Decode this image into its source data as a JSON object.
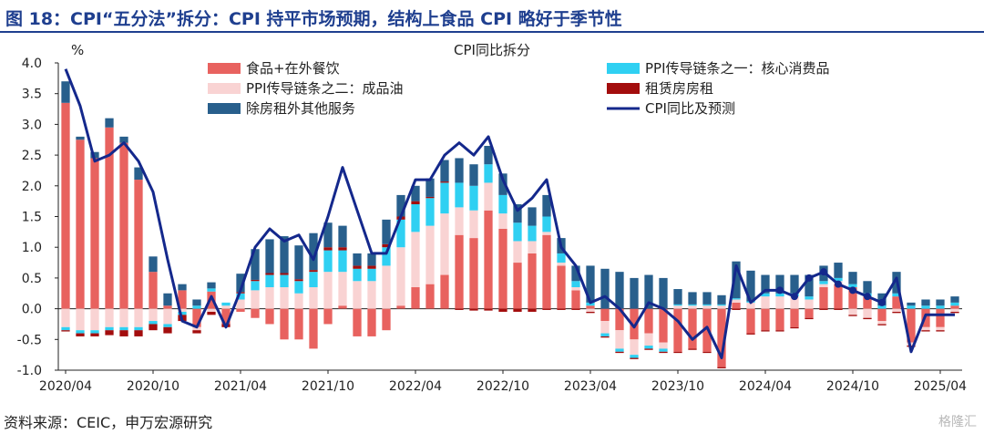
{
  "header": {
    "title": "图 18：CPI“五分法”拆分：CPI 持平市场预期，结构上食品 CPI 略好于季节性"
  },
  "footer": {
    "source": "资料来源：CEIC，申万宏源研究",
    "watermark": "格隆汇"
  },
  "colors": {
    "food": "#e8625f",
    "core_goods": "#2fd0f2",
    "oil_goods": "#f9d3d3",
    "rent": "#a30d0d",
    "other_services": "#285f8c",
    "cpi_line": "#14288c",
    "axis": "#222222"
  },
  "chart_data": {
    "type": "bar",
    "title": "CPI同比拆分",
    "ylabel": "%",
    "xlabel": "",
    "ylim": [
      -1.0,
      4.0
    ],
    "yticks": [
      "4.0",
      "3.5",
      "3.0",
      "2.5",
      "2.0",
      "1.5",
      "1.0",
      "0.5",
      "0.0",
      "-0.5",
      "-1.0"
    ],
    "x_tick_labels": [
      "2020/04",
      "2020/10",
      "2021/04",
      "2021/10",
      "2022/04",
      "2022/10",
      "2023/04",
      "2023/10",
      "2024/04",
      "2024/10",
      "2025/04"
    ],
    "legend_placement": "top",
    "grid": false,
    "categories": [
      "2020/04",
      "2020/05",
      "2020/06",
      "2020/07",
      "2020/08",
      "2020/09",
      "2020/10",
      "2020/11",
      "2020/12",
      "2021/01",
      "2021/02",
      "2021/03",
      "2021/04",
      "2021/05",
      "2021/06",
      "2021/07",
      "2021/08",
      "2021/09",
      "2021/10",
      "2021/11",
      "2021/12",
      "2022/01",
      "2022/02",
      "2022/03",
      "2022/04",
      "2022/05",
      "2022/06",
      "2022/07",
      "2022/08",
      "2022/09",
      "2022/10",
      "2022/11",
      "2022/12",
      "2023/01",
      "2023/02",
      "2023/03",
      "2023/04",
      "2023/05",
      "2023/06",
      "2023/07",
      "2023/08",
      "2023/09",
      "2023/10",
      "2023/11",
      "2023/12",
      "2024/01",
      "2024/02",
      "2024/03",
      "2024/04",
      "2024/05",
      "2024/06",
      "2024/07",
      "2024/08",
      "2024/09",
      "2024/10",
      "2024/11",
      "2024/12",
      "2025/01",
      "2025/02",
      "2025/03",
      "2025/04",
      "2025/05"
    ],
    "series": [
      {
        "name": "食品+在外餐饮",
        "key": "food",
        "values": [
          3.35,
          2.75,
          2.45,
          2.95,
          2.7,
          2.1,
          0.6,
          0.05,
          0.3,
          -0.3,
          0.28,
          -0.25,
          -0.05,
          -0.15,
          -0.25,
          -0.5,
          -0.5,
          -0.65,
          -0.25,
          0.05,
          -0.45,
          -0.45,
          -0.35,
          0.05,
          0.35,
          0.4,
          0.55,
          1.2,
          1.15,
          1.6,
          1.3,
          0.75,
          0.9,
          1.2,
          0.7,
          0.3,
          0.05,
          -0.2,
          -0.35,
          -0.5,
          -0.4,
          -0.55,
          -0.7,
          -0.65,
          -0.7,
          -0.95,
          0.1,
          -0.4,
          -0.35,
          -0.35,
          -0.3,
          -0.15,
          0.35,
          0.4,
          0.35,
          0.2,
          -0.2,
          0.2,
          -0.55,
          -0.3,
          -0.3,
          0.05
        ]
      },
      {
        "name": "PPI传导链条之二：成品油",
        "key": "oil_goods",
        "values": [
          -0.3,
          -0.35,
          -0.35,
          -0.3,
          -0.3,
          -0.3,
          -0.2,
          -0.25,
          -0.05,
          -0.05,
          -0.05,
          0.05,
          0.15,
          0.3,
          0.35,
          0.35,
          0.25,
          0.35,
          0.6,
          0.55,
          0.45,
          0.45,
          0.7,
          0.95,
          0.9,
          0.95,
          1.0,
          0.45,
          0.45,
          0.45,
          0.25,
          0.35,
          0.2,
          0.05,
          0.05,
          0.05,
          -0.05,
          -0.2,
          -0.3,
          -0.25,
          -0.2,
          -0.1,
          0.05,
          0.05,
          0.05,
          0.05,
          0.05,
          0.1,
          0.2,
          0.2,
          0.2,
          0.15,
          0.05,
          0.05,
          -0.1,
          -0.15,
          -0.05,
          -0.05,
          -0.05,
          -0.05,
          -0.05,
          -0.05
        ]
      },
      {
        "name": "PPI传导链条之一：核心消费品",
        "key": "core_goods",
        "values": [
          -0.05,
          -0.05,
          -0.05,
          -0.05,
          -0.05,
          -0.05,
          -0.05,
          -0.05,
          -0.05,
          0.05,
          0.05,
          0.05,
          0.1,
          0.15,
          0.2,
          0.2,
          0.2,
          0.25,
          0.35,
          0.35,
          0.2,
          0.2,
          0.3,
          0.45,
          0.45,
          0.45,
          0.5,
          0.4,
          0.4,
          0.3,
          0.3,
          0.3,
          0.25,
          0.25,
          0.15,
          0.1,
          0.05,
          -0.05,
          -0.05,
          -0.05,
          -0.05,
          -0.05,
          0.02,
          0.02,
          0.02,
          0.02,
          0.02,
          0.02,
          0.05,
          0.05,
          0.05,
          0.05,
          0.05,
          0.05,
          0.05,
          0.05,
          0.05,
          0.05,
          0.05,
          0.05,
          0.05,
          0.05
        ]
      },
      {
        "name": "租赁房房租",
        "key": "rent",
        "values": [
          -0.02,
          -0.05,
          -0.05,
          -0.08,
          -0.1,
          -0.1,
          -0.1,
          -0.1,
          -0.1,
          -0.05,
          -0.05,
          -0.05,
          0.02,
          0.02,
          0.03,
          0.03,
          0.03,
          0.03,
          0.05,
          0.05,
          0.05,
          0.05,
          0.05,
          0.05,
          0.05,
          0.02,
          0.02,
          -0.02,
          -0.03,
          -0.03,
          -0.05,
          -0.05,
          -0.05,
          -0.02,
          -0.02,
          -0.02,
          -0.02,
          -0.02,
          -0.02,
          -0.02,
          -0.02,
          -0.02,
          -0.02,
          -0.02,
          -0.02,
          -0.02,
          -0.02,
          -0.02,
          -0.02,
          -0.02,
          -0.02,
          -0.02,
          -0.02,
          -0.02,
          -0.02,
          -0.02,
          -0.02,
          -0.02,
          -0.02,
          -0.02,
          -0.02,
          -0.02
        ]
      },
      {
        "name": "除房租外其他服务",
        "key": "other_services",
        "values": [
          0.35,
          0.05,
          0.1,
          0.15,
          0.1,
          0.2,
          0.25,
          0.2,
          0.1,
          0.1,
          0.1,
          0.0,
          0.3,
          0.5,
          0.55,
          0.6,
          0.55,
          0.6,
          0.4,
          0.35,
          0.2,
          0.2,
          0.4,
          0.35,
          0.25,
          0.3,
          0.35,
          0.4,
          0.35,
          0.3,
          0.35,
          0.3,
          0.3,
          0.35,
          0.25,
          0.25,
          0.6,
          0.65,
          0.6,
          0.5,
          0.55,
          0.5,
          0.25,
          0.2,
          0.2,
          0.15,
          0.6,
          0.5,
          0.3,
          0.3,
          0.3,
          0.35,
          0.25,
          0.25,
          0.2,
          0.2,
          0.2,
          0.35,
          0.05,
          0.1,
          0.1,
          0.1
        ]
      },
      {
        "name": "CPI同比及预测",
        "key": "cpi",
        "type": "line",
        "values": [
          3.9,
          3.3,
          2.4,
          2.5,
          2.7,
          2.4,
          1.9,
          0.8,
          -0.2,
          -0.3,
          0.2,
          -0.3,
          0.3,
          1.0,
          1.3,
          1.1,
          1.2,
          0.8,
          1.5,
          2.3,
          1.6,
          0.9,
          0.9,
          1.5,
          2.1,
          2.1,
          2.5,
          2.7,
          2.5,
          2.8,
          2.1,
          1.6,
          1.8,
          2.1,
          1.0,
          0.7,
          0.1,
          0.2,
          0.0,
          -0.3,
          0.1,
          0.0,
          -0.2,
          -0.5,
          -0.3,
          -0.8,
          0.7,
          0.1,
          0.3,
          0.3,
          0.2,
          0.5,
          0.6,
          0.4,
          0.3,
          0.2,
          0.1,
          0.5,
          -0.7,
          -0.1,
          -0.1,
          -0.1
        ]
      }
    ]
  }
}
